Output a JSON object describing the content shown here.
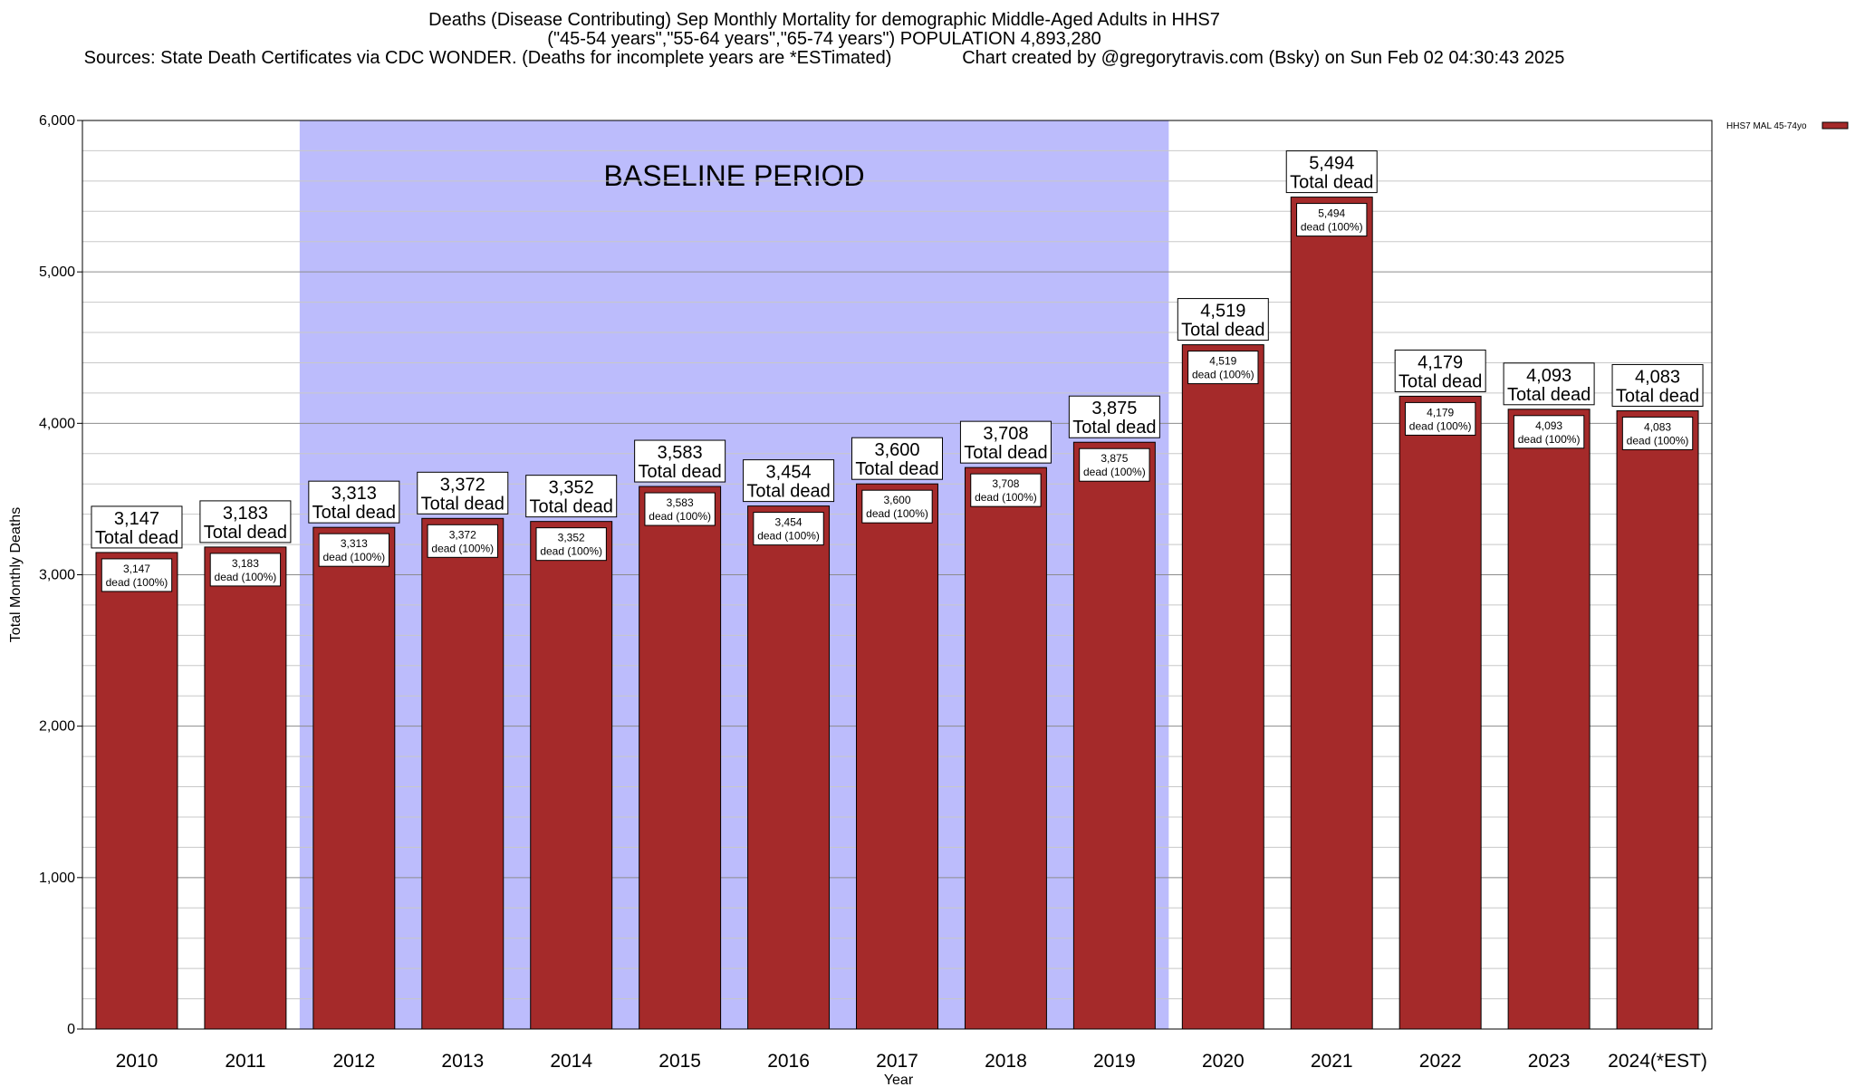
{
  "titles": {
    "line1": "Deaths (Disease Contributing) Sep Monthly Mortality for demographic Middle-Aged Adults in HHS7",
    "line2": "(\"45-54 years\",\"55-64 years\",\"65-74 years\") POPULATION 4,893,280",
    "line3": "Sources: State Death Certificates via CDC WONDER. (Deaths for incomplete years are *ESTimated)              Chart created by @gregorytravis.com (Bsky) on Sun Feb 02 04:30:43 2025"
  },
  "chart_data": {
    "type": "bar",
    "xlabel": "Year",
    "ylabel": "Total Monthly Deaths",
    "ylim": [
      0,
      6000
    ],
    "y_ticks": [
      0,
      1000,
      2000,
      3000,
      4000,
      5000,
      6000
    ],
    "y_tick_labels": [
      "0",
      "1,000",
      "2,000",
      "3,000",
      "4,000",
      "5,000",
      "6,000"
    ],
    "grid": true,
    "categories": [
      "2010",
      "2011",
      "2012",
      "2013",
      "2014",
      "2015",
      "2016",
      "2017",
      "2018",
      "2019",
      "2020",
      "2021",
      "2022",
      "2023",
      "2024(*EST)"
    ],
    "series": [
      {
        "name": "HHS7 MAL 45-74yo",
        "color": "#a52a2a",
        "values": [
          3147,
          3183,
          3313,
          3372,
          3352,
          3583,
          3454,
          3600,
          3708,
          3875,
          4519,
          5494,
          4179,
          4093,
          4083
        ]
      }
    ],
    "value_labels": [
      "3,147",
      "3,183",
      "3,313",
      "3,372",
      "3,352",
      "3,583",
      "3,454",
      "3,600",
      "3,708",
      "3,875",
      "4,519",
      "5,494",
      "4,179",
      "4,093",
      "4,083"
    ],
    "top_label_suffix": "Total dead",
    "inner_label_suffix": "dead (100%)",
    "baseline": {
      "label": "BASELINE PERIOD",
      "from": "2012",
      "to": "2019",
      "color": "#bcbcfc"
    },
    "legend_position": "top-right"
  }
}
